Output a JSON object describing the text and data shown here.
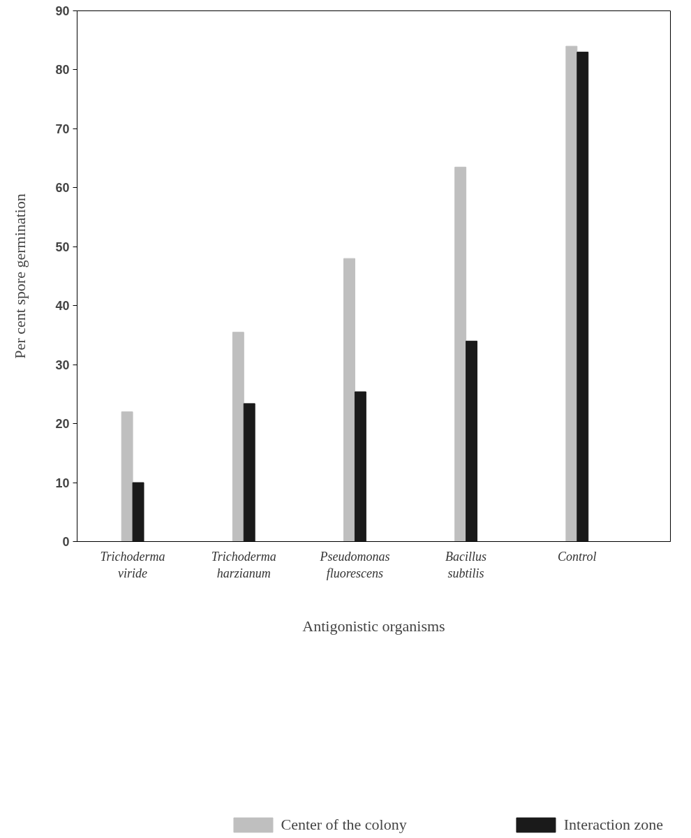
{
  "chart_data": {
    "type": "bar",
    "xlabel": "Antigonistic organisms",
    "ylabel": "Per cent spore germination",
    "categories": [
      "Trichoderma\nviride",
      "Trichoderma\nharzianum",
      "Pseudomonas\nfluorescens",
      "Bacillus\nsubtilis",
      "Control"
    ],
    "series": [
      {
        "name": "Center of the colony",
        "color": "#bfbfbf",
        "values": [
          22,
          35.5,
          48,
          63.5,
          84
        ]
      },
      {
        "name": "Interaction zone",
        "color": "#1a1a1a",
        "values": [
          10,
          23.4,
          25.4,
          34,
          83
        ]
      }
    ],
    "ylim": [
      0,
      90
    ],
    "yticks": [
      0,
      10,
      20,
      30,
      40,
      50,
      60,
      70,
      80,
      90
    ],
    "grid": false,
    "legend": "bottom"
  }
}
